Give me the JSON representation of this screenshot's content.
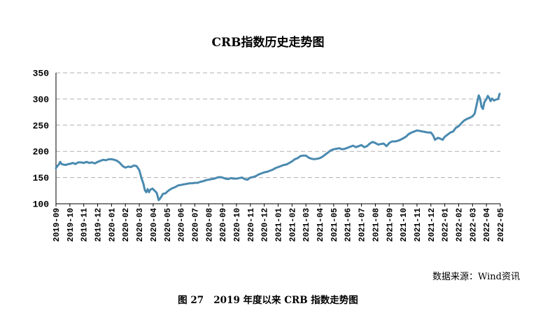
{
  "chart_data": {
    "type": "line",
    "title": "CRB指数历史走势图",
    "xlabel": "",
    "ylabel": "",
    "ylim": [
      100,
      350
    ],
    "y_ticks": [
      100,
      150,
      200,
      250,
      300,
      350
    ],
    "grid": "horizontal dashed",
    "series_color": "#4a8ab0",
    "categories": [
      "2019-09",
      "2019-10",
      "2019-11",
      "2019-12",
      "2020-01",
      "2020-02",
      "2020-03",
      "2020-04",
      "2020-05",
      "2020-06",
      "2020-07",
      "2020-08",
      "2020-09",
      "2020-10",
      "2020-11",
      "2020-12",
      "2021-01",
      "2021-02",
      "2021-03",
      "2021-04",
      "2021-05",
      "2021-06",
      "2021-07",
      "2021-08",
      "2021-09",
      "2021-10",
      "2021-11",
      "2021-12",
      "2022-01",
      "2022-02",
      "2022-03",
      "2022-04",
      "2022-05"
    ],
    "series": [
      {
        "values": [
          [
            0.0,
            168
          ],
          [
            0.1,
            172
          ],
          [
            0.2,
            175
          ],
          [
            0.3,
            180
          ],
          [
            0.4,
            176
          ],
          [
            0.5,
            175
          ],
          [
            0.7,
            174
          ],
          [
            0.9,
            176
          ],
          [
            1.0,
            176
          ],
          [
            1.2,
            178
          ],
          [
            1.4,
            176
          ],
          [
            1.6,
            179
          ],
          [
            1.8,
            179
          ],
          [
            2.0,
            178
          ],
          [
            2.2,
            180
          ],
          [
            2.4,
            178
          ],
          [
            2.6,
            179
          ],
          [
            2.8,
            177
          ],
          [
            3.0,
            180
          ],
          [
            3.2,
            182
          ],
          [
            3.4,
            184
          ],
          [
            3.6,
            183
          ],
          [
            3.8,
            185
          ],
          [
            4.0,
            185
          ],
          [
            4.2,
            184
          ],
          [
            4.4,
            182
          ],
          [
            4.6,
            178
          ],
          [
            4.8,
            172
          ],
          [
            5.0,
            169
          ],
          [
            5.2,
            171
          ],
          [
            5.4,
            170
          ],
          [
            5.6,
            173
          ],
          [
            5.8,
            172
          ],
          [
            5.9,
            168
          ],
          [
            6.0,
            164
          ],
          [
            6.15,
            150
          ],
          [
            6.3,
            138
          ],
          [
            6.4,
            126
          ],
          [
            6.5,
            122
          ],
          [
            6.6,
            128
          ],
          [
            6.7,
            122
          ],
          [
            6.8,
            127
          ],
          [
            6.95,
            129
          ],
          [
            7.1,
            125
          ],
          [
            7.25,
            121
          ],
          [
            7.4,
            107
          ],
          [
            7.5,
            110
          ],
          [
            7.6,
            114
          ],
          [
            7.7,
            119
          ],
          [
            7.9,
            120
          ],
          [
            8.0,
            123
          ],
          [
            8.2,
            127
          ],
          [
            8.4,
            130
          ],
          [
            8.6,
            132
          ],
          [
            8.8,
            135
          ],
          [
            9.0,
            136
          ],
          [
            9.2,
            137
          ],
          [
            9.4,
            138
          ],
          [
            9.6,
            139
          ],
          [
            9.8,
            139
          ],
          [
            10.0,
            140
          ],
          [
            10.2,
            140
          ],
          [
            10.4,
            142
          ],
          [
            10.6,
            143
          ],
          [
            10.8,
            145
          ],
          [
            11.0,
            146
          ],
          [
            11.2,
            147
          ],
          [
            11.4,
            148
          ],
          [
            11.6,
            150
          ],
          [
            11.8,
            151
          ],
          [
            12.0,
            150
          ],
          [
            12.2,
            148
          ],
          [
            12.4,
            147
          ],
          [
            12.6,
            149
          ],
          [
            12.8,
            148
          ],
          [
            13.0,
            148
          ],
          [
            13.2,
            149
          ],
          [
            13.4,
            150
          ],
          [
            13.6,
            147
          ],
          [
            13.8,
            146
          ],
          [
            14.0,
            150
          ],
          [
            14.2,
            151
          ],
          [
            14.4,
            153
          ],
          [
            14.6,
            156
          ],
          [
            14.8,
            158
          ],
          [
            15.0,
            160
          ],
          [
            15.2,
            161
          ],
          [
            15.4,
            163
          ],
          [
            15.6,
            165
          ],
          [
            15.8,
            168
          ],
          [
            16.0,
            170
          ],
          [
            16.2,
            172
          ],
          [
            16.4,
            174
          ],
          [
            16.6,
            175
          ],
          [
            16.8,
            178
          ],
          [
            17.0,
            181
          ],
          [
            17.2,
            185
          ],
          [
            17.4,
            187
          ],
          [
            17.6,
            191
          ],
          [
            17.8,
            192
          ],
          [
            18.0,
            192
          ],
          [
            18.2,
            188
          ],
          [
            18.4,
            186
          ],
          [
            18.6,
            185
          ],
          [
            18.8,
            186
          ],
          [
            19.0,
            187
          ],
          [
            19.2,
            190
          ],
          [
            19.4,
            194
          ],
          [
            19.6,
            198
          ],
          [
            19.8,
            202
          ],
          [
            20.0,
            204
          ],
          [
            20.2,
            205
          ],
          [
            20.4,
            206
          ],
          [
            20.6,
            204
          ],
          [
            20.8,
            205
          ],
          [
            21.0,
            207
          ],
          [
            21.2,
            209
          ],
          [
            21.4,
            211
          ],
          [
            21.6,
            208
          ],
          [
            21.8,
            210
          ],
          [
            22.0,
            212
          ],
          [
            22.2,
            208
          ],
          [
            22.4,
            210
          ],
          [
            22.6,
            215
          ],
          [
            22.8,
            218
          ],
          [
            23.0,
            216
          ],
          [
            23.2,
            213
          ],
          [
            23.4,
            214
          ],
          [
            23.6,
            215
          ],
          [
            23.8,
            210
          ],
          [
            24.0,
            216
          ],
          [
            24.2,
            219
          ],
          [
            24.4,
            219
          ],
          [
            24.6,
            220
          ],
          [
            24.8,
            222
          ],
          [
            25.0,
            225
          ],
          [
            25.2,
            228
          ],
          [
            25.4,
            233
          ],
          [
            25.6,
            236
          ],
          [
            25.8,
            238
          ],
          [
            26.0,
            240
          ],
          [
            26.2,
            239
          ],
          [
            26.4,
            238
          ],
          [
            26.6,
            237
          ],
          [
            26.8,
            236
          ],
          [
            27.0,
            236
          ],
          [
            27.15,
            231
          ],
          [
            27.3,
            222
          ],
          [
            27.5,
            226
          ],
          [
            27.7,
            224
          ],
          [
            27.85,
            222
          ],
          [
            28.0,
            228
          ],
          [
            28.2,
            232
          ],
          [
            28.4,
            236
          ],
          [
            28.6,
            238
          ],
          [
            28.8,
            245
          ],
          [
            29.0,
            248
          ],
          [
            29.2,
            254
          ],
          [
            29.4,
            259
          ],
          [
            29.6,
            262
          ],
          [
            29.8,
            264
          ],
          [
            30.0,
            267
          ],
          [
            30.15,
            272
          ],
          [
            30.3,
            290
          ],
          [
            30.45,
            307
          ],
          [
            30.55,
            300
          ],
          [
            30.65,
            285
          ],
          [
            30.75,
            281
          ],
          [
            30.85,
            294
          ],
          [
            31.0,
            300
          ],
          [
            31.1,
            306
          ],
          [
            31.2,
            302
          ],
          [
            31.3,
            296
          ],
          [
            31.4,
            301
          ],
          [
            31.55,
            297
          ],
          [
            31.7,
            299
          ],
          [
            31.85,
            300
          ],
          [
            31.95,
            310
          ]
        ]
      }
    ]
  },
  "source_note": "数据来源：Wind资讯",
  "figure_caption": "图 27   2019 年度以来 CRB 指数走势图"
}
